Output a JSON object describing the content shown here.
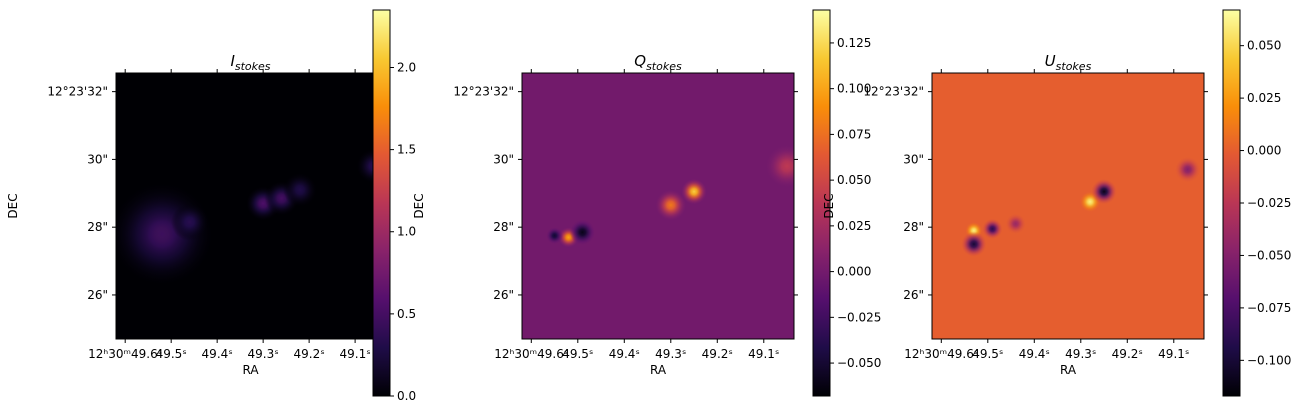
{
  "figure": {
    "background": "#ffffff",
    "colormap": "inferno",
    "colormap_stops": [
      "#000004",
      "#1f0c48",
      "#550f6d",
      "#88226a",
      "#ba3655",
      "#e35933",
      "#f98e09",
      "#f8c932",
      "#fcffa4"
    ]
  },
  "chart_data": [
    {
      "type": "heatmap",
      "title": "I_stokes",
      "title_base": "I",
      "title_sub": "stokes",
      "xlabel": "RA",
      "ylabel": "DEC",
      "x_ticks": [
        "12ʰ30ᵐ49.6ˢ",
        "49.5ˢ",
        "49.4ˢ",
        "49.3ˢ",
        "49.2ˢ",
        "49.1ˢ"
      ],
      "y_ticks": [
        "12°23'32\"",
        "30\"",
        "28\"",
        "26\""
      ],
      "colorbar": {
        "min": 0.0,
        "max": 2.35,
        "ticks": [
          "0.0",
          "0.5",
          "1.0",
          "1.5",
          "2.0"
        ],
        "tick_values": [
          0.0,
          0.5,
          1.0,
          1.5,
          2.0
        ]
      },
      "background_value": 0.0,
      "sources": [
        {
          "ra_s": 49.52,
          "dec_arcsec": 27.8,
          "value": 2.3,
          "sigma_arcsec": 0.18
        },
        {
          "ra_s": 49.52,
          "dec_arcsec": 27.8,
          "value": 0.45,
          "sigma_arcsec": 0.6
        },
        {
          "ra_s": 49.46,
          "dec_arcsec": 28.15,
          "value": 0.35,
          "sigma_arcsec": 0.22
        },
        {
          "ra_s": 49.3,
          "dec_arcsec": 28.7,
          "value": 0.55,
          "sigma_arcsec": 0.2
        },
        {
          "ra_s": 49.26,
          "dec_arcsec": 28.85,
          "value": 0.5,
          "sigma_arcsec": 0.2
        },
        {
          "ra_s": 49.22,
          "dec_arcsec": 29.1,
          "value": 0.3,
          "sigma_arcsec": 0.2
        },
        {
          "ra_s": 49.06,
          "dec_arcsec": 29.8,
          "value": 0.35,
          "sigma_arcsec": 0.2
        }
      ]
    },
    {
      "type": "heatmap",
      "title": "Q_stokes",
      "title_base": "Q",
      "title_sub": "stokes",
      "xlabel": "RA",
      "ylabel": "DEC",
      "x_ticks": [
        "12ʰ30ᵐ49.6ˢ",
        "49.5ˢ",
        "49.4ˢ",
        "49.3ˢ",
        "49.2ˢ",
        "49.1ˢ"
      ],
      "y_ticks": [
        "12°23'32\"",
        "30\"",
        "28\"",
        "26\""
      ],
      "colorbar": {
        "min": -0.068,
        "max": 0.143,
        "ticks": [
          "−0.050",
          "−0.025",
          "0.000",
          "0.025",
          "0.050",
          "0.075",
          "0.100",
          "0.125"
        ],
        "tick_values": [
          -0.05,
          -0.025,
          0.0,
          0.025,
          0.05,
          0.075,
          0.1,
          0.125
        ]
      },
      "background_value": 0.0,
      "sources": [
        {
          "ra_s": 49.52,
          "dec_arcsec": 27.7,
          "value": 0.1,
          "sigma_arcsec": 0.12
        },
        {
          "ra_s": 49.49,
          "dec_arcsec": 27.85,
          "value": -0.06,
          "sigma_arcsec": 0.15
        },
        {
          "ra_s": 49.55,
          "dec_arcsec": 27.75,
          "value": -0.05,
          "sigma_arcsec": 0.1
        },
        {
          "ra_s": 49.3,
          "dec_arcsec": 28.65,
          "value": 0.08,
          "sigma_arcsec": 0.18
        },
        {
          "ra_s": 49.25,
          "dec_arcsec": 29.05,
          "value": 0.12,
          "sigma_arcsec": 0.15
        },
        {
          "ra_s": 49.05,
          "dec_arcsec": 29.8,
          "value": 0.04,
          "sigma_arcsec": 0.25
        }
      ]
    },
    {
      "type": "heatmap",
      "title": "U_stokes",
      "title_base": "U",
      "title_sub": "stokes",
      "xlabel": "RA",
      "ylabel": "DEC",
      "x_ticks": [
        "12ʰ30ᵐ49.6ˢ",
        "49.5ˢ",
        "49.4ˢ",
        "49.3ˢ",
        "49.2ˢ",
        "49.1ˢ"
      ],
      "y_ticks": [
        "12°23'32\"",
        "30\"",
        "28\"",
        "26\""
      ],
      "colorbar": {
        "min": -0.117,
        "max": 0.067,
        "ticks": [
          "−0.100",
          "−0.075",
          "−0.050",
          "−0.025",
          "0.000",
          "0.025",
          "0.050"
        ],
        "tick_values": [
          -0.1,
          -0.075,
          -0.05,
          -0.025,
          0.0,
          0.025,
          0.05
        ]
      },
      "background_value": 0.0,
      "sources": [
        {
          "ra_s": 49.53,
          "dec_arcsec": 27.9,
          "value": 0.06,
          "sigma_arcsec": 0.1
        },
        {
          "ra_s": 49.53,
          "dec_arcsec": 27.5,
          "value": -0.1,
          "sigma_arcsec": 0.15
        },
        {
          "ra_s": 49.49,
          "dec_arcsec": 27.95,
          "value": -0.09,
          "sigma_arcsec": 0.12
        },
        {
          "ra_s": 49.44,
          "dec_arcsec": 28.1,
          "value": -0.04,
          "sigma_arcsec": 0.12
        },
        {
          "ra_s": 49.28,
          "dec_arcsec": 28.75,
          "value": 0.06,
          "sigma_arcsec": 0.12
        },
        {
          "ra_s": 49.25,
          "dec_arcsec": 29.05,
          "value": -0.11,
          "sigma_arcsec": 0.15
        },
        {
          "ra_s": 49.07,
          "dec_arcsec": 29.7,
          "value": -0.05,
          "sigma_arcsec": 0.15
        }
      ]
    }
  ]
}
